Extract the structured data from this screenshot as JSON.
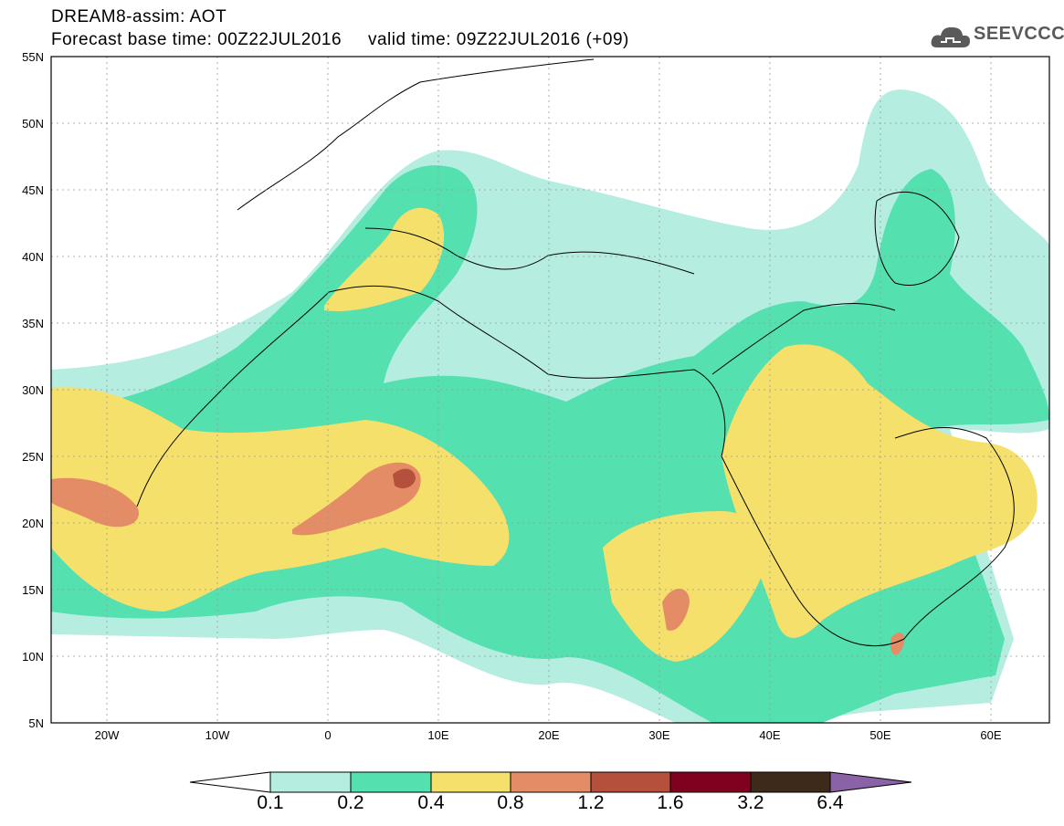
{
  "header": {
    "line1": "DREAM8-assim: AOT",
    "line2": "Forecast base time: 00Z22JUL2016     valid time: 09Z22JUL2016 (+09)"
  },
  "logo": {
    "text": "SEEVCCC",
    "icon": "cloud-logo-icon"
  },
  "map": {
    "lat_labels": [
      "55N",
      "50N",
      "45N",
      "40N",
      "35N",
      "30N",
      "25N",
      "20N",
      "15N",
      "10N",
      "5N"
    ],
    "lon_labels": [
      "20W",
      "10W",
      "0",
      "10E",
      "20E",
      "30E",
      "40E",
      "50E",
      "60E"
    ],
    "colors": {
      "level_0_1": "#b5ede1",
      "level_0_2": "#55e0b0",
      "level_0_4": "#f4e06a",
      "level_0_8": "#e48c66",
      "level_1_2": "#b5503c",
      "level_1_6": "#800020",
      "level_3_2": "#3e2a1a",
      "level_6_4": "#8a62a6"
    }
  },
  "colorbar": {
    "labels": [
      "0.1",
      "0.2",
      "0.4",
      "0.8",
      "1.2",
      "1.6",
      "3.2",
      "6.4"
    ],
    "colors": [
      "#b5ede1",
      "#55e0b0",
      "#f4e06a",
      "#e48c66",
      "#b5503c",
      "#800020",
      "#3e2a1a"
    ],
    "over_color": "#8a62a6",
    "under_color": "#ffffff"
  }
}
